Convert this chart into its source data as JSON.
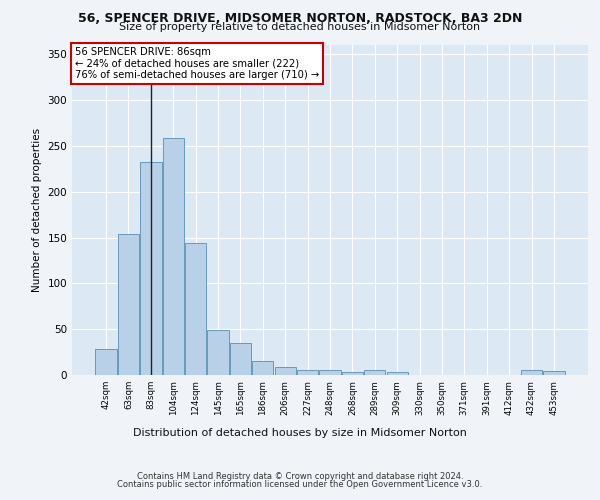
{
  "title_line1": "56, SPENCER DRIVE, MIDSOMER NORTON, RADSTOCK, BA3 2DN",
  "title_line2": "Size of property relative to detached houses in Midsomer Norton",
  "xlabel": "Distribution of detached houses by size in Midsomer Norton",
  "ylabel": "Number of detached properties",
  "categories": [
    "42sqm",
    "63sqm",
    "83sqm",
    "104sqm",
    "124sqm",
    "145sqm",
    "165sqm",
    "186sqm",
    "206sqm",
    "227sqm",
    "248sqm",
    "268sqm",
    "289sqm",
    "309sqm",
    "330sqm",
    "350sqm",
    "371sqm",
    "391sqm",
    "412sqm",
    "432sqm",
    "453sqm"
  ],
  "values": [
    28,
    154,
    232,
    259,
    144,
    49,
    35,
    15,
    9,
    6,
    5,
    3,
    5,
    3,
    0,
    0,
    0,
    0,
    0,
    5,
    4
  ],
  "bar_color": "#b8d0e8",
  "bar_edge_color": "#6699bb",
  "vline_x_index": 2,
  "vline_color": "#222222",
  "annotation_text": "56 SPENCER DRIVE: 86sqm\n← 24% of detached houses are smaller (222)\n76% of semi-detached houses are larger (710) →",
  "annotation_box_facecolor": "#ffffff",
  "annotation_box_edgecolor": "#cc0000",
  "ylim": [
    0,
    360
  ],
  "yticks": [
    0,
    50,
    100,
    150,
    200,
    250,
    300,
    350
  ],
  "footer_line1": "Contains HM Land Registry data © Crown copyright and database right 2024.",
  "footer_line2": "Contains public sector information licensed under the Open Government Licence v3.0.",
  "fig_bg_color": "#f0f4f8",
  "plot_bg_color": "#dce8f4"
}
